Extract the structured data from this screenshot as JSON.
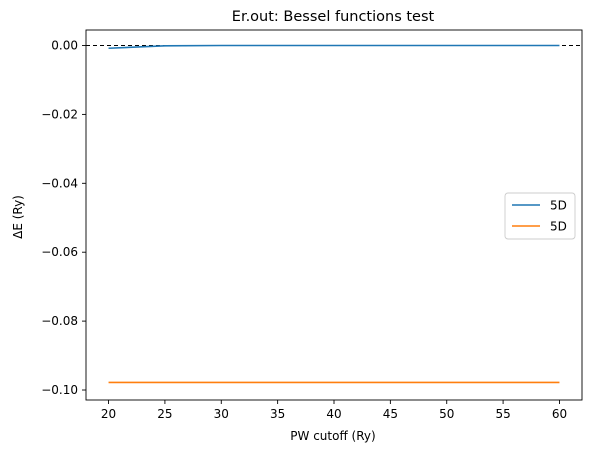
{
  "chart_data": {
    "type": "line",
    "title": "Er.out: Bessel functions test",
    "xlabel": "PW cutoff (Ry)",
    "ylabel": "ΔE (Ry)",
    "xlim": [
      18.0,
      62.0
    ],
    "ylim": [
      -0.1029,
      0.0045
    ],
    "x_ticks": [
      20,
      25,
      30,
      35,
      40,
      45,
      50,
      55,
      60
    ],
    "x_tick_labels": [
      "20",
      "25",
      "30",
      "35",
      "40",
      "45",
      "50",
      "55",
      "60"
    ],
    "y_ticks": [
      0.0,
      -0.02,
      -0.04,
      -0.06,
      -0.08,
      -0.1
    ],
    "y_tick_labels": [
      "0.00",
      "−0.02",
      "−0.04",
      "−0.06",
      "−0.08",
      "−0.10"
    ],
    "x": [
      20,
      25,
      30,
      35,
      40,
      45,
      50,
      55,
      60
    ],
    "series": [
      {
        "name": "5D",
        "color": "#1f77b4",
        "values": [
          -0.0008,
          -0.0001,
          0.0,
          0.0,
          0.0,
          0.0,
          0.0,
          0.0,
          0.0
        ]
      },
      {
        "name": "5D",
        "color": "#ff7f0e",
        "values": [
          -0.0978,
          -0.0978,
          -0.0978,
          -0.0978,
          -0.0978,
          -0.0978,
          -0.0978,
          -0.0978,
          -0.0978
        ]
      }
    ],
    "reference_line": {
      "y": 0.0,
      "style": "dashed",
      "color": "#000000"
    },
    "grid": false,
    "legend_position": "center-right"
  }
}
